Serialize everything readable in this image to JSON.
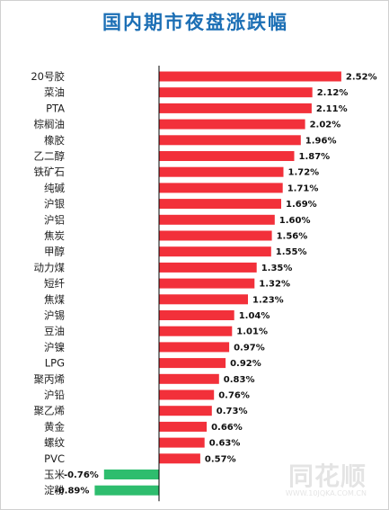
{
  "chart_data": {
    "type": "bar",
    "orientation": "horizontal",
    "title": "国内期市夜盘涨跌幅",
    "categories": [
      "20号胶",
      "菜油",
      "PTA",
      "棕榈油",
      "橡胶",
      "乙二醇",
      "铁矿石",
      "纯碱",
      "沪银",
      "沪铝",
      "焦炭",
      "甲醇",
      "动力煤",
      "短纤",
      "焦煤",
      "沪锡",
      "豆油",
      "沪镍",
      "LPG",
      "聚丙烯",
      "沪铅",
      "聚乙烯",
      "黄金",
      "螺纹",
      "PVC",
      "玉米",
      "淀粉"
    ],
    "values": [
      2.52,
      2.12,
      2.11,
      2.02,
      1.96,
      1.87,
      1.72,
      1.71,
      1.69,
      1.6,
      1.56,
      1.55,
      1.35,
      1.32,
      1.23,
      1.04,
      1.01,
      0.97,
      0.92,
      0.83,
      0.76,
      0.73,
      0.66,
      0.63,
      0.57,
      -0.76,
      -0.89
    ],
    "value_labels": [
      "2.52%",
      "2.12%",
      "2.11%",
      "2.02%",
      "1.96%",
      "1.87%",
      "1.72%",
      "1.71%",
      "1.69%",
      "1.60%",
      "1.56%",
      "1.55%",
      "1.35%",
      "1.32%",
      "1.23%",
      "1.04%",
      "1.01%",
      "0.97%",
      "0.92%",
      "0.83%",
      "0.76%",
      "0.73%",
      "0.66%",
      "0.63%",
      "0.57%",
      "-0.76%",
      "-0.89%"
    ],
    "unit": "%",
    "colors": {
      "positive": "#f2303a",
      "negative": "#2ebd6e",
      "axis": "#000000",
      "title": "#1c6fb5"
    },
    "grid": false,
    "legend": "none"
  },
  "watermark": {
    "brand": "同花顺",
    "site": "WWW.10JQKA.COM.CN"
  }
}
